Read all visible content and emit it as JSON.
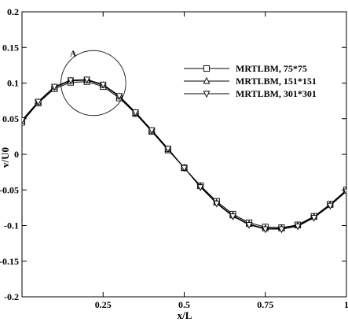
{
  "chart_data": {
    "type": "line",
    "title": "",
    "xlabel": "x/L",
    "ylabel": "v/U0",
    "xlim": [
      0,
      1
    ],
    "ylim": [
      -0.2,
      0.2
    ],
    "x_ticks": [
      0.25,
      0.5,
      0.75,
      1
    ],
    "x_tick_labels": [
      "0.25",
      "0.5",
      "0.75",
      "1"
    ],
    "y_ticks": [
      -0.2,
      -0.15,
      -0.1,
      -0.05,
      0,
      0.05,
      0.1,
      0.15,
      0.2
    ],
    "y_tick_labels": [
      "-0.2",
      "-0.15",
      "-0.1",
      "-0.05",
      "0",
      "0.05",
      "0.1",
      "0.15",
      "0.2"
    ],
    "grid": false,
    "legend_position": "upper-right",
    "annotation": {
      "text": "A",
      "circle_center": [
        0.22,
        0.1
      ],
      "circle_radius_x": 0.1
    },
    "series": [
      {
        "name": "MRTLBM, 75*75",
        "marker": "square",
        "x": [
          0,
          0.05,
          0.1,
          0.15,
          0.2,
          0.25,
          0.3,
          0.35,
          0.4,
          0.45,
          0.5,
          0.55,
          0.6,
          0.65,
          0.7,
          0.75,
          0.8,
          0.85,
          0.9,
          0.95,
          1
        ],
        "y": [
          0.045,
          0.072,
          0.092,
          0.101,
          0.102,
          0.095,
          0.079,
          0.057,
          0.032,
          0.006,
          -0.019,
          -0.044,
          -0.066,
          -0.084,
          -0.096,
          -0.102,
          -0.103,
          -0.099,
          -0.087,
          -0.07,
          -0.05
        ]
      },
      {
        "name": "MRTLBM, 151*151",
        "marker": "triangle-up",
        "x": [
          0,
          0.05,
          0.1,
          0.15,
          0.2,
          0.25,
          0.3,
          0.35,
          0.4,
          0.45,
          0.5,
          0.55,
          0.6,
          0.65,
          0.7,
          0.75,
          0.8,
          0.85,
          0.9,
          0.95,
          1
        ],
        "y": [
          0.047,
          0.073,
          0.094,
          0.103,
          0.104,
          0.097,
          0.081,
          0.058,
          0.033,
          0.007,
          -0.019,
          -0.045,
          -0.068,
          -0.086,
          -0.098,
          -0.104,
          -0.104,
          -0.1,
          -0.088,
          -0.071,
          -0.051
        ]
      },
      {
        "name": "MRTLBM, 301*301",
        "marker": "triangle-down",
        "x": [
          0,
          0.05,
          0.1,
          0.15,
          0.2,
          0.25,
          0.3,
          0.35,
          0.4,
          0.45,
          0.5,
          0.55,
          0.6,
          0.65,
          0.7,
          0.75,
          0.8,
          0.85,
          0.9,
          0.95,
          1
        ],
        "y": [
          0.048,
          0.074,
          0.095,
          0.104,
          0.105,
          0.098,
          0.082,
          0.059,
          0.034,
          0.008,
          -0.019,
          -0.046,
          -0.069,
          -0.087,
          -0.099,
          -0.105,
          -0.105,
          -0.101,
          -0.089,
          -0.072,
          -0.052
        ]
      }
    ]
  }
}
